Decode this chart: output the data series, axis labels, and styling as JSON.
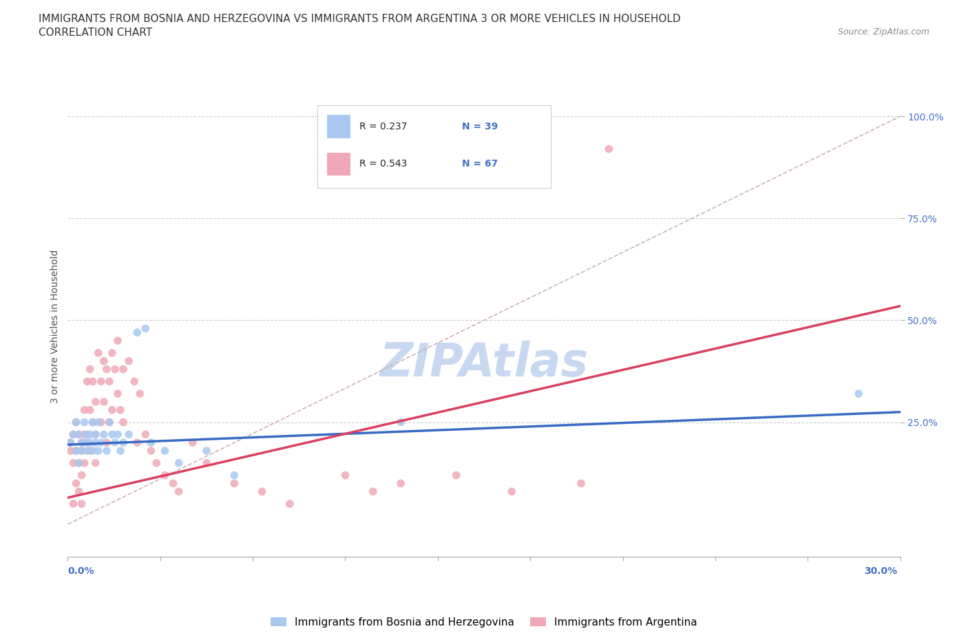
{
  "title_line1": "IMMIGRANTS FROM BOSNIA AND HERZEGOVINA VS IMMIGRANTS FROM ARGENTINA 3 OR MORE VEHICLES IN HOUSEHOLD",
  "title_line2": "CORRELATION CHART",
  "source_text": "Source: ZipAtlas.com",
  "ylabel": "3 or more Vehicles in Household",
  "xmin": 0.0,
  "xmax": 0.3,
  "ymin": -0.08,
  "ymax": 1.05,
  "bosnia_color": "#a8c8f0",
  "argentina_color": "#f0a8b8",
  "bosnia_line_color": "#3a6bc4",
  "argentina_line_color": "#d84060",
  "background_color": "#ffffff",
  "watermark_color": "#c8d8f0",
  "bosnia_scatter_x": [
    0.001,
    0.002,
    0.003,
    0.003,
    0.004,
    0.004,
    0.005,
    0.005,
    0.006,
    0.006,
    0.007,
    0.007,
    0.008,
    0.008,
    0.009,
    0.009,
    0.01,
    0.01,
    0.011,
    0.011,
    0.012,
    0.013,
    0.014,
    0.015,
    0.016,
    0.017,
    0.018,
    0.019,
    0.02,
    0.022,
    0.025,
    0.028,
    0.03,
    0.035,
    0.04,
    0.05,
    0.06,
    0.12,
    0.285
  ],
  "bosnia_scatter_y": [
    0.2,
    0.22,
    0.18,
    0.25,
    0.15,
    0.22,
    0.2,
    0.18,
    0.25,
    0.2,
    0.22,
    0.18,
    0.22,
    0.2,
    0.25,
    0.18,
    0.2,
    0.22,
    0.18,
    0.25,
    0.2,
    0.22,
    0.18,
    0.25,
    0.22,
    0.2,
    0.22,
    0.18,
    0.2,
    0.22,
    0.47,
    0.48,
    0.2,
    0.18,
    0.15,
    0.18,
    0.12,
    0.25,
    0.32
  ],
  "argentina_scatter_x": [
    0.001,
    0.001,
    0.002,
    0.002,
    0.002,
    0.003,
    0.003,
    0.003,
    0.004,
    0.004,
    0.004,
    0.005,
    0.005,
    0.005,
    0.005,
    0.006,
    0.006,
    0.006,
    0.007,
    0.007,
    0.008,
    0.008,
    0.008,
    0.009,
    0.009,
    0.01,
    0.01,
    0.01,
    0.011,
    0.012,
    0.012,
    0.013,
    0.013,
    0.014,
    0.014,
    0.015,
    0.015,
    0.016,
    0.016,
    0.017,
    0.018,
    0.018,
    0.019,
    0.02,
    0.02,
    0.022,
    0.024,
    0.025,
    0.026,
    0.028,
    0.03,
    0.032,
    0.035,
    0.038,
    0.04,
    0.045,
    0.05,
    0.06,
    0.07,
    0.08,
    0.1,
    0.11,
    0.12,
    0.14,
    0.16,
    0.185,
    0.195
  ],
  "argentina_scatter_y": [
    0.2,
    0.18,
    0.22,
    0.05,
    0.15,
    0.25,
    0.18,
    0.1,
    0.22,
    0.15,
    0.08,
    0.2,
    0.18,
    0.12,
    0.05,
    0.28,
    0.22,
    0.15,
    0.35,
    0.2,
    0.38,
    0.28,
    0.18,
    0.35,
    0.25,
    0.3,
    0.22,
    0.15,
    0.42,
    0.35,
    0.25,
    0.4,
    0.3,
    0.38,
    0.2,
    0.35,
    0.25,
    0.42,
    0.28,
    0.38,
    0.45,
    0.32,
    0.28,
    0.38,
    0.25,
    0.4,
    0.35,
    0.2,
    0.32,
    0.22,
    0.18,
    0.15,
    0.12,
    0.1,
    0.08,
    0.2,
    0.15,
    0.1,
    0.08,
    0.05,
    0.12,
    0.08,
    0.1,
    0.12,
    0.08,
    0.1,
    0.92
  ],
  "bosnia_line_x": [
    0.0,
    0.3
  ],
  "bosnia_line_y": [
    0.195,
    0.275
  ],
  "argentina_line_x": [
    0.0,
    0.3
  ],
  "argentina_line_y": [
    0.065,
    0.535
  ],
  "diag_line_x": [
    0.0,
    0.3
  ],
  "diag_line_y": [
    0.0,
    1.0
  ]
}
